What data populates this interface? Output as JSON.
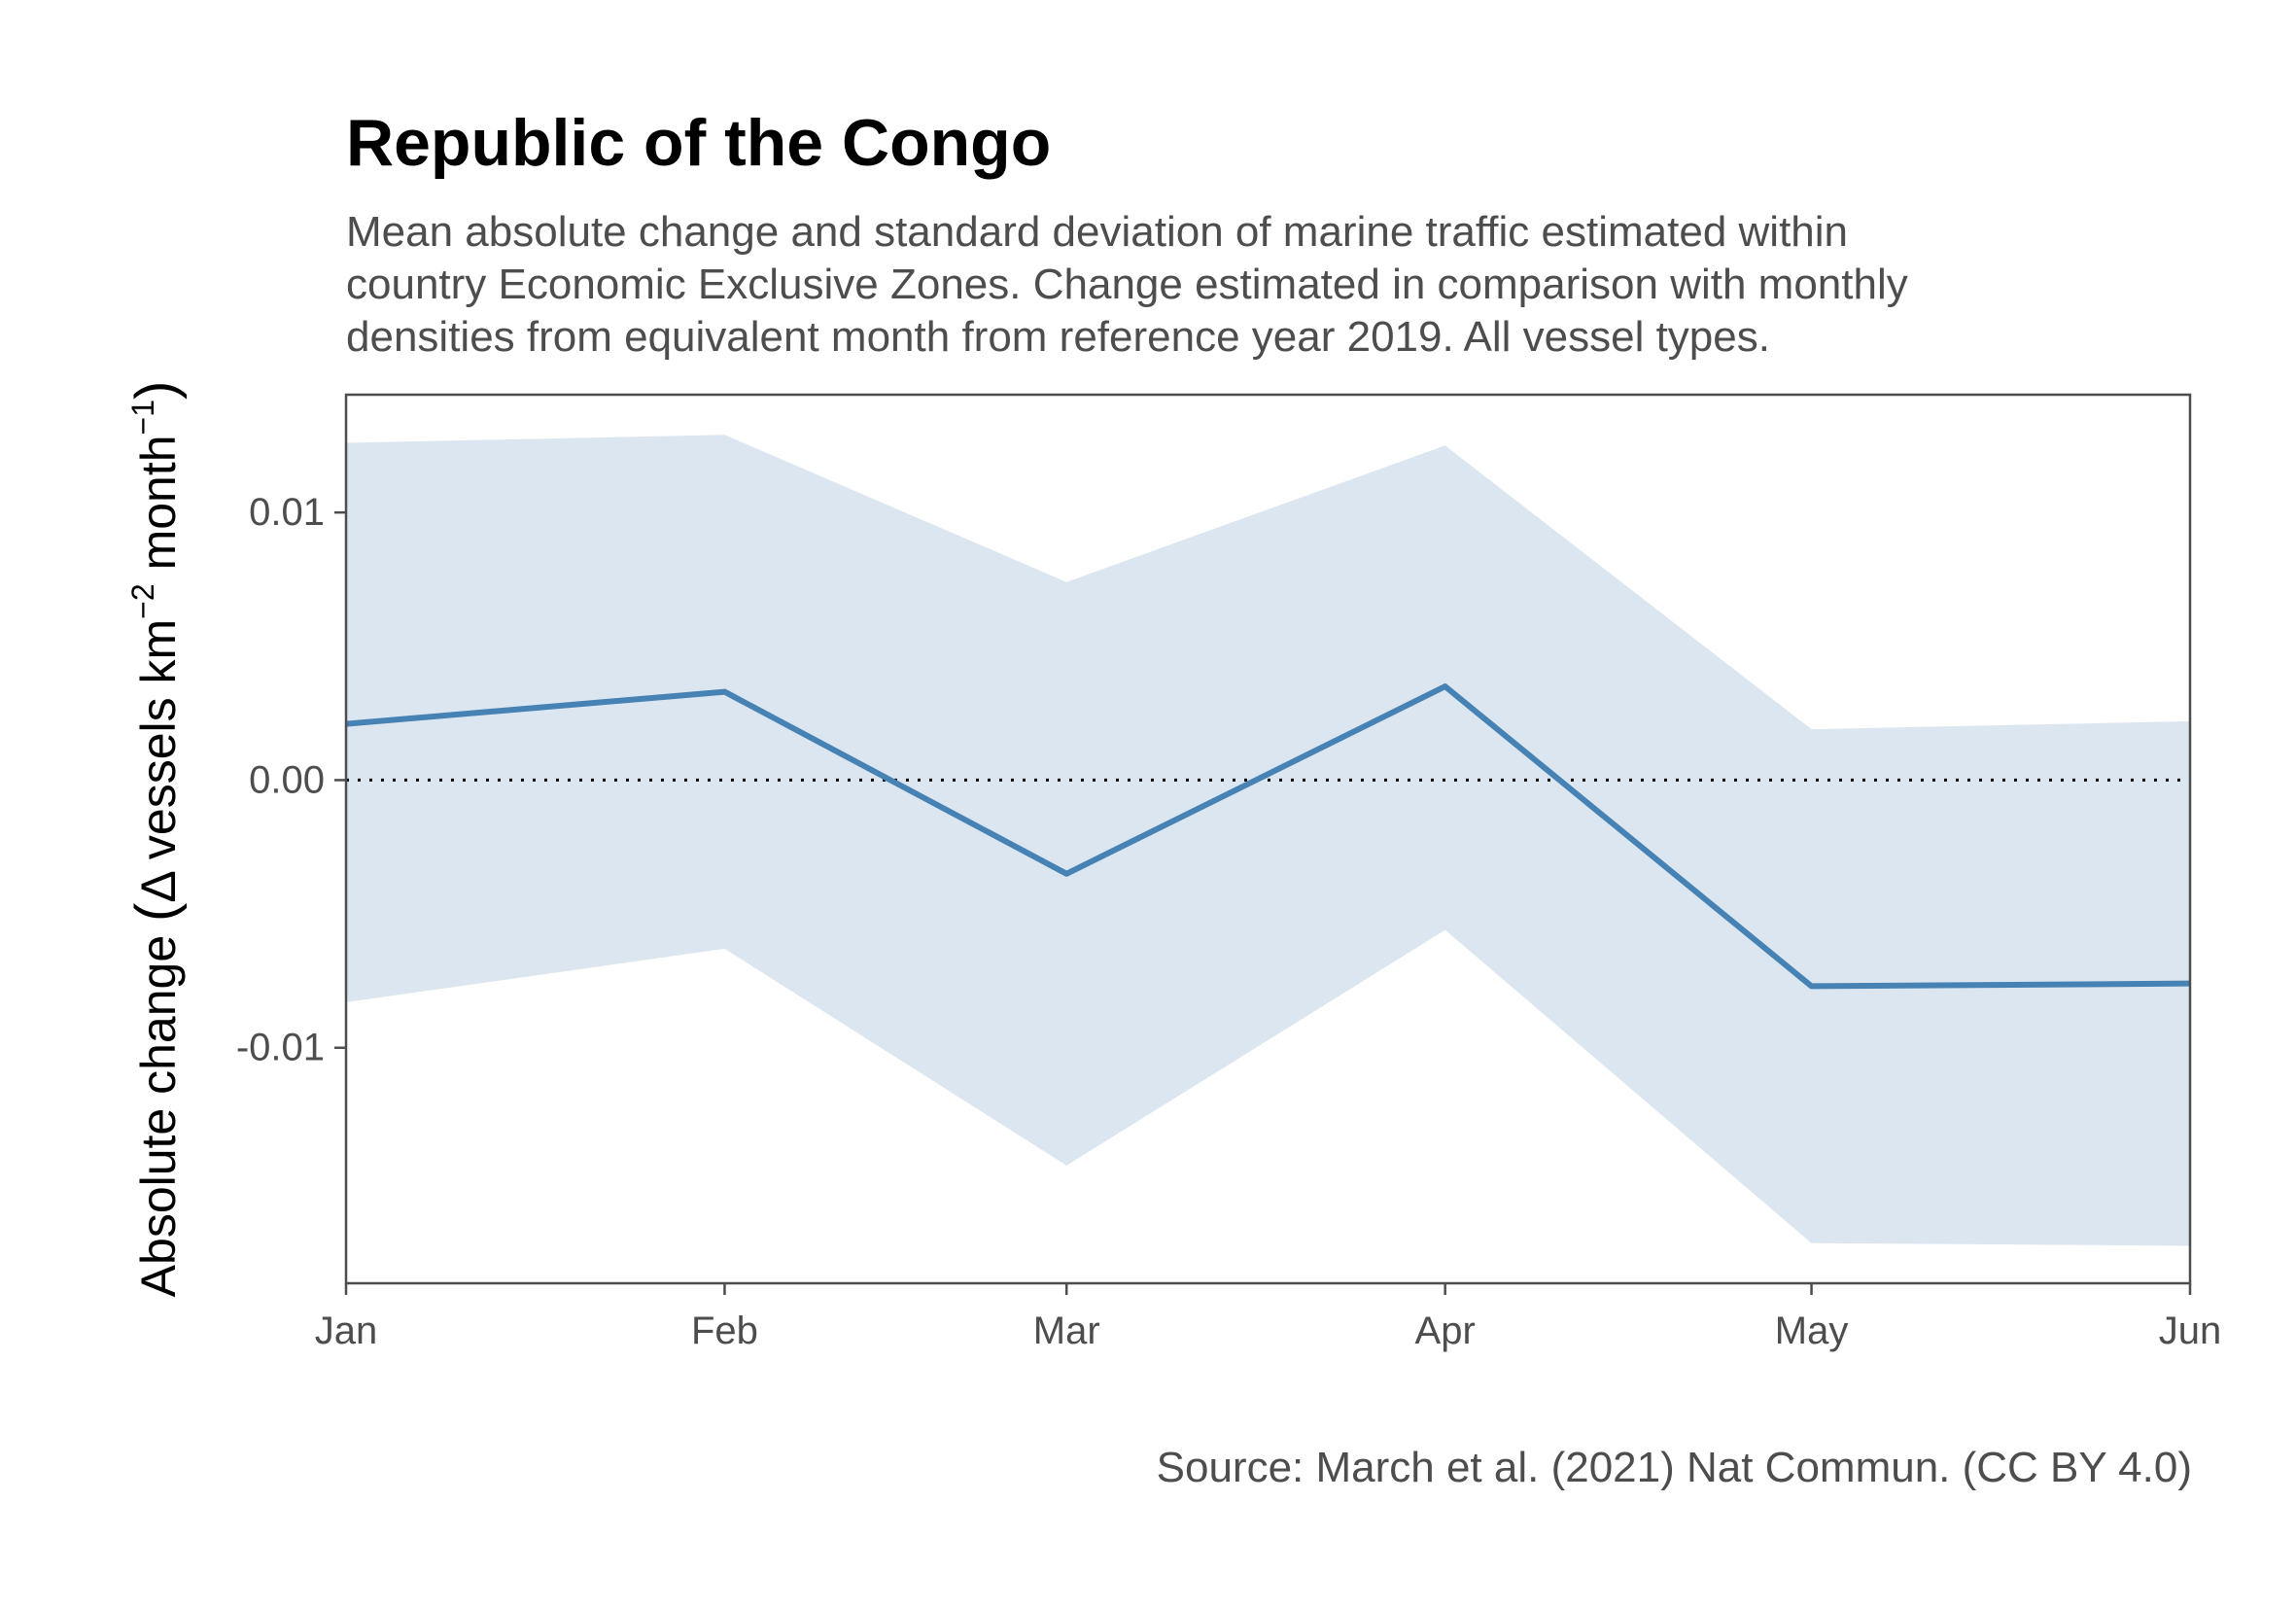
{
  "chart_data": {
    "type": "line",
    "title": "Republic of the Congo",
    "subtitle_lines": [
      "Mean absolute change and standard deviation of marine traffic estimated within",
      "country Economic Exclusive Zones. Change estimated in comparison with monthly",
      "densities from equivalent month from reference year 2019. All vessel types."
    ],
    "caption": "Source: March et al. (2021) Nat Commun. (CC BY 4.0)",
    "ylabel": {
      "prefix": "Absolute change ",
      "paren_open": "(",
      "delta": "Δ",
      "middle": " vessels km",
      "sup1": "−2",
      "middle2": " month",
      "sup2": "−1",
      "paren_close": ")"
    },
    "xlabel": "",
    "categories": [
      "Jan",
      "Feb",
      "Mar",
      "Apr",
      "May",
      "Jun"
    ],
    "x_day_offsets": [
      0,
      31,
      59,
      90,
      120,
      151
    ],
    "series": [
      {
        "values": [
          0.0021,
          0.0033,
          -0.0035,
          0.0035,
          -0.0077,
          -0.0076
        ],
        "sd_upper": [
          0.0126,
          0.0129,
          0.0074,
          0.0125,
          0.0019,
          0.0022
        ],
        "sd_lower": [
          -0.0083,
          -0.0063,
          -0.0144,
          -0.0056,
          -0.0173,
          -0.0174
        ]
      }
    ],
    "ylim": [
      -0.0188,
      0.0144
    ],
    "yticks": [
      -0.01,
      0.0,
      0.01
    ],
    "ytick_labels": [
      "-0.01",
      "0.00",
      "0.01"
    ],
    "reference_line": 0.0,
    "colors": {
      "line": "#4682b4",
      "band": "#dce6f0",
      "reference": "#000000",
      "axis": "#4d4d4d"
    },
    "grid": false,
    "legend": "none"
  }
}
